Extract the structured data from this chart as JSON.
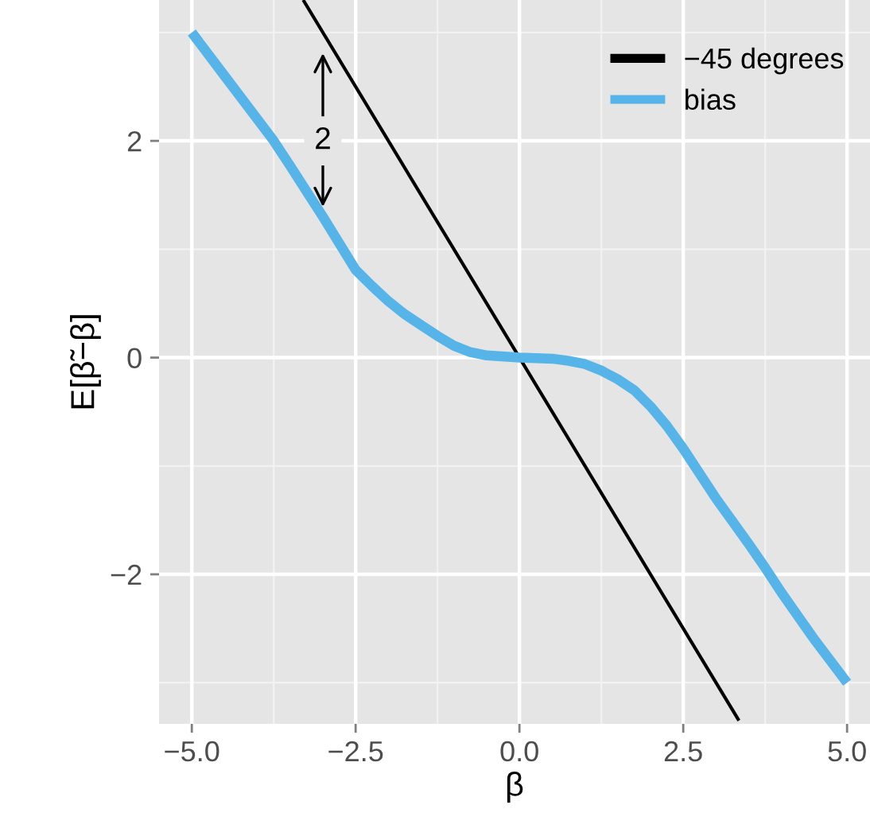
{
  "chart_data": {
    "type": "line",
    "xlabel": "β",
    "ylabel": "E[β̃−β]",
    "xlim": [
      -5.5,
      5.35
    ],
    "ylim": [
      -3.38,
      3.3
    ],
    "xticks": [
      {
        "value": -5,
        "label": "−5.0"
      },
      {
        "value": -2.5,
        "label": "−2.5"
      },
      {
        "value": 0,
        "label": "0.0"
      },
      {
        "value": 2.5,
        "label": "2.5"
      },
      {
        "value": 5,
        "label": "5.0"
      }
    ],
    "yticks": [
      {
        "value": -2,
        "label": "−2"
      },
      0,
      2
    ],
    "grid": true,
    "legend": "top right",
    "marker": "none",
    "line_style": "solid",
    "series": [
      {
        "name": "−45 degrees",
        "color": "#000000",
        "x": [
          -3.3,
          3.35
        ],
        "values": [
          3.3,
          -3.35
        ]
      },
      {
        "name": "bias",
        "color": "#56b4e9",
        "x": [
          -5,
          -4.5,
          -4,
          -3.75,
          -3.5,
          -3,
          -2.5,
          -2.25,
          -2,
          -1.75,
          -1.5,
          -1.25,
          -1,
          -0.75,
          -0.5,
          0,
          0.5,
          0.75,
          1,
          1.25,
          1.5,
          1.75,
          2,
          2.25,
          2.5,
          3,
          3.5,
          3.75,
          4,
          4.5,
          5
        ],
        "values": [
          3.0,
          2.6,
          2.2,
          2.0,
          1.77,
          1.3,
          0.81,
          0.66,
          0.52,
          0.4,
          0.3,
          0.2,
          0.11,
          0.05,
          0.02,
          0,
          -0.01,
          -0.03,
          -0.06,
          -0.12,
          -0.2,
          -0.3,
          -0.45,
          -0.63,
          -0.84,
          -1.3,
          -1.72,
          -1.94,
          -2.17,
          -2.6,
          -3.0
        ]
      }
    ],
    "annotations": [
      {
        "text": "2",
        "x": -3,
        "y": 2
      }
    ]
  }
}
